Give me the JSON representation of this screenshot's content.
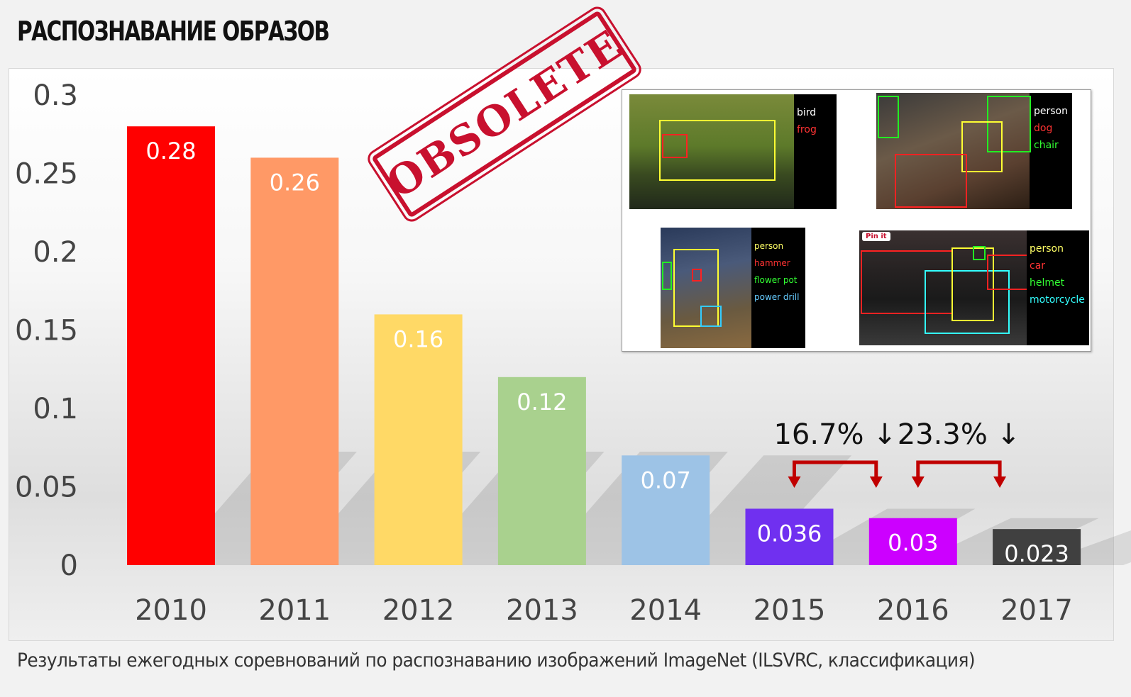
{
  "page": {
    "title": "РАСПОЗНАВАНИЕ ОБРАЗОВ",
    "caption": "Результаты ежегодных соревнований по распознаванию изображений ImageNet (ILSVRC, классификация)",
    "stamp": "OBSOLETE"
  },
  "chart_data": {
    "type": "bar",
    "categories": [
      "2010",
      "2011",
      "2012",
      "2013",
      "2014",
      "2015",
      "2016",
      "2017"
    ],
    "values": [
      0.28,
      0.26,
      0.16,
      0.12,
      0.07,
      0.036,
      0.03,
      0.023
    ],
    "data_labels": [
      "0.28",
      "0.26",
      "0.16",
      "0.12",
      "0.07",
      "0.036",
      "0.03",
      "0.023"
    ],
    "colors": [
      "#ff0000",
      "#ff9966",
      "#ffd966",
      "#a9d18e",
      "#9dc3e6",
      "#7030f0",
      "#cc00ff",
      "#404040"
    ],
    "title": "",
    "xlabel": "",
    "ylabel": "",
    "ylim": [
      0,
      0.3
    ],
    "yticks": [
      "0",
      "0.05",
      "0.1",
      "0.15",
      "0.2",
      "0.25",
      "0.3"
    ],
    "grid": false,
    "legend": "none",
    "annotations": [
      {
        "text": "16.7% ↓",
        "from": "2015",
        "to": "2016"
      },
      {
        "text": "23.3% ↓",
        "from": "2016",
        "to": "2017"
      }
    ],
    "annotation_color": "#c00000"
  },
  "inset": {
    "photos": [
      {
        "labels": [
          {
            "text": "bird",
            "color": "#ffffff"
          },
          {
            "text": "frog",
            "color": "#ff3333"
          }
        ]
      },
      {
        "labels": [
          {
            "text": "person",
            "color": "#ffffff"
          },
          {
            "text": "dog",
            "color": "#ff3333"
          },
          {
            "text": "chair",
            "color": "#33ff33"
          }
        ]
      },
      {
        "labels": [
          {
            "text": "person",
            "color": "#ffff66"
          },
          {
            "text": "hammer",
            "color": "#ff3333"
          },
          {
            "text": "flower pot",
            "color": "#33ff33"
          },
          {
            "text": "power drill",
            "color": "#66ccff"
          }
        ]
      },
      {
        "labels": [
          {
            "text": "person",
            "color": "#ffff66"
          },
          {
            "text": "car",
            "color": "#ff3333"
          },
          {
            "text": "helmet",
            "color": "#33ff33"
          },
          {
            "text": "motorcycle",
            "color": "#33ffff"
          }
        ]
      }
    ],
    "pinit": "Pin it"
  }
}
